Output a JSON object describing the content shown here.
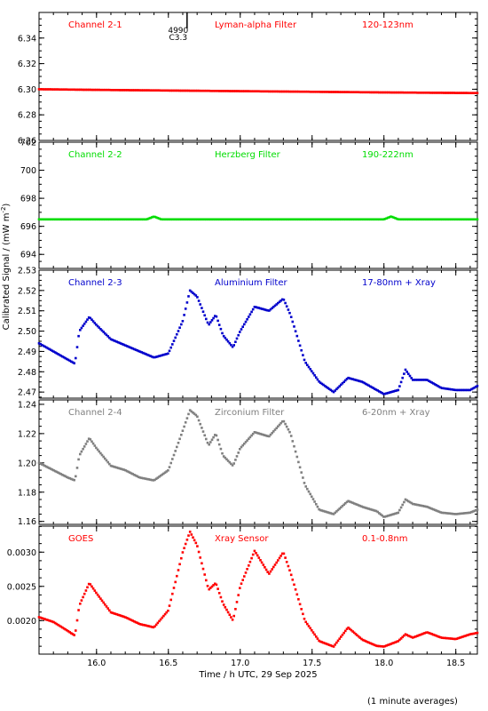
{
  "figure": {
    "ylabel": "Calibrated Signal / (mW m",
    "ylabel_sup": "-2",
    "ylabel_close": ")",
    "xlabel": "Time / h UTC, 29 Sep 2025",
    "footnote": "(1 minute averages)",
    "x_range": [
      15.6,
      18.65
    ],
    "x_ticks": [
      "16.0",
      "16.5",
      "17.0",
      "17.5",
      "18.0",
      "18.5"
    ],
    "x_tick_values": [
      16.0,
      16.5,
      17.0,
      17.5,
      18.0,
      18.5
    ],
    "marker": {
      "value": 16.63,
      "labels": [
        "4990",
        "C3.3"
      ]
    }
  },
  "chart_data": [
    {
      "type": "scatter",
      "channel": "Channel 2-1",
      "filter": "Lyman-alpha Filter",
      "band": "120-123nm",
      "color": "#ff0000",
      "ylim": [
        6.26,
        6.36
      ],
      "y_ticks": [
        "6.26",
        "6.28",
        "6.30",
        "6.32",
        "6.34"
      ],
      "y_tick_values": [
        6.26,
        6.28,
        6.3,
        6.32,
        6.34
      ],
      "x": [
        15.6,
        16.0,
        16.5,
        17.0,
        17.5,
        18.0,
        18.65
      ],
      "y": [
        6.3,
        6.2995,
        6.299,
        6.2985,
        6.298,
        6.2975,
        6.297
      ]
    },
    {
      "type": "scatter",
      "channel": "Channel 2-2",
      "filter": "Herzberg Filter",
      "band": "190-222nm",
      "color": "#00dd00",
      "ylim": [
        693,
        702
      ],
      "y_ticks": [
        "694",
        "696",
        "698",
        "700",
        "702"
      ],
      "y_tick_values": [
        694,
        696,
        698,
        700,
        702
      ],
      "x": [
        15.6,
        16.35,
        16.4,
        16.45,
        17.0,
        18.0,
        18.05,
        18.1,
        18.65
      ],
      "y": [
        696.5,
        696.5,
        696.7,
        696.5,
        696.5,
        696.5,
        696.7,
        696.5,
        696.5
      ]
    },
    {
      "type": "scatter",
      "channel": "Channel 2-3",
      "filter": "Aluminium Filter",
      "band": "17-80nm + Xray",
      "color": "#0000cc",
      "ylim": [
        2.467,
        2.53
      ],
      "y_ticks": [
        "2.47",
        "2.48",
        "2.49",
        "2.50",
        "2.51",
        "2.52",
        "2.53"
      ],
      "y_tick_values": [
        2.47,
        2.48,
        2.49,
        2.5,
        2.51,
        2.52,
        2.53
      ],
      "x": [
        15.6,
        15.7,
        15.8,
        15.85,
        15.88,
        15.95,
        16.0,
        16.1,
        16.2,
        16.3,
        16.4,
        16.5,
        16.6,
        16.65,
        16.7,
        16.78,
        16.83,
        16.88,
        16.95,
        17.0,
        17.1,
        17.2,
        17.3,
        17.35,
        17.45,
        17.55,
        17.65,
        17.75,
        17.85,
        17.95,
        18.0,
        18.1,
        18.15,
        18.2,
        18.3,
        18.4,
        18.5,
        18.6,
        18.65
      ],
      "y": [
        2.494,
        2.49,
        2.486,
        2.484,
        2.5,
        2.507,
        2.503,
        2.496,
        2.493,
        2.49,
        2.487,
        2.489,
        2.505,
        2.52,
        2.517,
        2.503,
        2.508,
        2.498,
        2.492,
        2.5,
        2.512,
        2.51,
        2.516,
        2.508,
        2.485,
        2.475,
        2.47,
        2.477,
        2.475,
        2.471,
        2.469,
        2.471,
        2.481,
        2.476,
        2.476,
        2.472,
        2.471,
        2.471,
        2.473
      ]
    },
    {
      "type": "scatter",
      "channel": "Channel 2-4",
      "filter": "Zirconium Filter",
      "band": "6-20nm + Xray",
      "color": "#808080",
      "ylim": [
        1.158,
        1.243
      ],
      "y_ticks": [
        "1.16",
        "1.18",
        "1.20",
        "1.22",
        "1.24"
      ],
      "y_tick_values": [
        1.16,
        1.18,
        1.2,
        1.22,
        1.24
      ],
      "x": [
        15.6,
        15.7,
        15.8,
        15.85,
        15.88,
        15.95,
        16.0,
        16.1,
        16.2,
        16.3,
        16.4,
        16.5,
        16.6,
        16.65,
        16.7,
        16.78,
        16.83,
        16.88,
        16.95,
        17.0,
        17.1,
        17.2,
        17.3,
        17.35,
        17.45,
        17.55,
        17.65,
        17.75,
        17.85,
        17.95,
        18.0,
        18.1,
        18.15,
        18.2,
        18.3,
        18.4,
        18.5,
        18.6,
        18.65
      ],
      "y": [
        1.2,
        1.195,
        1.19,
        1.188,
        1.205,
        1.217,
        1.21,
        1.198,
        1.195,
        1.19,
        1.188,
        1.195,
        1.222,
        1.236,
        1.232,
        1.212,
        1.22,
        1.205,
        1.198,
        1.21,
        1.221,
        1.218,
        1.229,
        1.22,
        1.185,
        1.168,
        1.165,
        1.174,
        1.17,
        1.167,
        1.163,
        1.166,
        1.175,
        1.172,
        1.17,
        1.166,
        1.165,
        1.166,
        1.168
      ]
    },
    {
      "type": "scatter",
      "channel": "GOES",
      "filter": "Xray Sensor",
      "band": "0.1-0.8nm",
      "color": "#ff0000",
      "ylim": [
        0.00151,
        0.00338
      ],
      "y_ticks": [
        "0.0020",
        "0.0025",
        "0.0030"
      ],
      "y_tick_values": [
        0.002,
        0.0025,
        0.003
      ],
      "x": [
        15.6,
        15.7,
        15.8,
        15.85,
        15.88,
        15.95,
        16.0,
        16.1,
        16.2,
        16.3,
        16.4,
        16.5,
        16.6,
        16.65,
        16.7,
        16.78,
        16.83,
        16.88,
        16.95,
        17.0,
        17.1,
        17.2,
        17.3,
        17.35,
        17.45,
        17.55,
        17.65,
        17.75,
        17.85,
        17.95,
        18.0,
        18.1,
        18.15,
        18.2,
        18.3,
        18.4,
        18.5,
        18.6,
        18.65
      ],
      "y": [
        0.00205,
        0.00198,
        0.00185,
        0.00178,
        0.00222,
        0.00255,
        0.0024,
        0.00212,
        0.00205,
        0.00195,
        0.0019,
        0.00215,
        0.003,
        0.0033,
        0.0031,
        0.00245,
        0.00255,
        0.00225,
        0.002,
        0.0025,
        0.00302,
        0.00268,
        0.003,
        0.0027,
        0.002,
        0.0017,
        0.00162,
        0.0019,
        0.00172,
        0.00163,
        0.00162,
        0.0017,
        0.0018,
        0.00175,
        0.00183,
        0.00175,
        0.00173,
        0.0018,
        0.00182
      ]
    }
  ]
}
